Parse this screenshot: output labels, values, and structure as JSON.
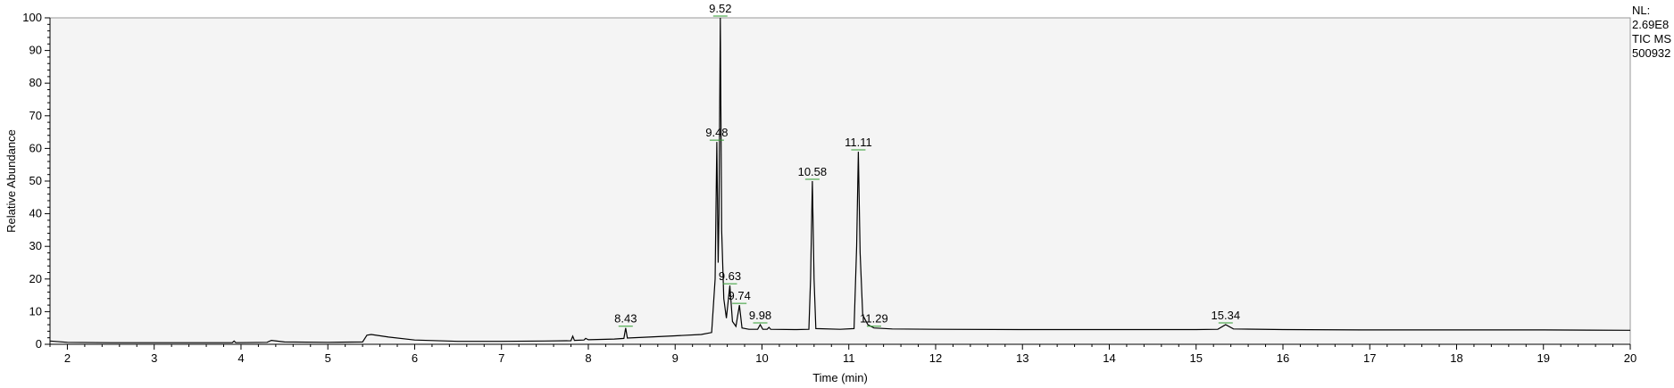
{
  "chart_data": {
    "type": "line",
    "title": "",
    "xlabel": "Time (min)",
    "ylabel": "Relative Abundance",
    "xlim": [
      1.8,
      20
    ],
    "ylim": [
      0,
      100
    ],
    "x_ticks": [
      2,
      3,
      4,
      5,
      6,
      7,
      8,
      9,
      10,
      11,
      12,
      13,
      14,
      15,
      16,
      17,
      18,
      19,
      20
    ],
    "y_ticks": [
      0,
      10,
      20,
      30,
      40,
      50,
      60,
      70,
      80,
      90,
      100
    ],
    "line_color": "#000000",
    "plot_background": "#f4f4f4",
    "label_marker_color": "#2e9b2e",
    "info_lines": [
      "NL:",
      "2.69E8",
      "TIC MS",
      "500932"
    ],
    "peaks": [
      {
        "rt": 8.43,
        "label": "8.43",
        "height": 5
      },
      {
        "rt": 9.48,
        "label": "9.48",
        "height": 62
      },
      {
        "rt": 9.52,
        "label": "9.52",
        "height": 100
      },
      {
        "rt": 9.63,
        "label": "9.63",
        "height": 18
      },
      {
        "rt": 9.74,
        "label": "9.74",
        "height": 12
      },
      {
        "rt": 9.98,
        "label": "9.98",
        "height": 6
      },
      {
        "rt": 10.58,
        "label": "10.58",
        "height": 50
      },
      {
        "rt": 11.11,
        "label": "11.11",
        "height": 59
      },
      {
        "rt": 11.29,
        "label": "11.29",
        "height": 5
      },
      {
        "rt": 15.34,
        "label": "15.34",
        "height": 6
      }
    ],
    "trace": [
      [
        1.8,
        1.0
      ],
      [
        2.0,
        0.6
      ],
      [
        2.5,
        0.5
      ],
      [
        3.0,
        0.5
      ],
      [
        3.5,
        0.5
      ],
      [
        3.9,
        0.5
      ],
      [
        3.92,
        1.0
      ],
      [
        3.94,
        0.5
      ],
      [
        4.3,
        0.6
      ],
      [
        4.35,
        1.2
      ],
      [
        4.5,
        0.7
      ],
      [
        5.0,
        0.6
      ],
      [
        5.4,
        0.7
      ],
      [
        5.45,
        2.8
      ],
      [
        5.5,
        3.0
      ],
      [
        5.7,
        2.2
      ],
      [
        6.0,
        1.3
      ],
      [
        6.5,
        0.9
      ],
      [
        7.0,
        0.9
      ],
      [
        7.5,
        1.0
      ],
      [
        7.8,
        1.1
      ],
      [
        7.82,
        2.5
      ],
      [
        7.84,
        1.2
      ],
      [
        7.95,
        1.3
      ],
      [
        7.97,
        1.8
      ],
      [
        8.0,
        1.4
      ],
      [
        8.3,
        1.6
      ],
      [
        8.41,
        1.8
      ],
      [
        8.43,
        5.0
      ],
      [
        8.45,
        1.9
      ],
      [
        8.7,
        2.2
      ],
      [
        9.0,
        2.6
      ],
      [
        9.3,
        3.0
      ],
      [
        9.42,
        3.6
      ],
      [
        9.46,
        20
      ],
      [
        9.48,
        62
      ],
      [
        9.495,
        25
      ],
      [
        9.505,
        40
      ],
      [
        9.52,
        100
      ],
      [
        9.535,
        35
      ],
      [
        9.56,
        14
      ],
      [
        9.59,
        8
      ],
      [
        9.63,
        18
      ],
      [
        9.66,
        7
      ],
      [
        9.7,
        5.5
      ],
      [
        9.74,
        12
      ],
      [
        9.77,
        5.0
      ],
      [
        9.85,
        4.6
      ],
      [
        9.95,
        4.6
      ],
      [
        9.98,
        6.0
      ],
      [
        10.01,
        4.6
      ],
      [
        10.06,
        4.6
      ],
      [
        10.08,
        5.2
      ],
      [
        10.1,
        4.6
      ],
      [
        10.4,
        4.5
      ],
      [
        10.54,
        4.6
      ],
      [
        10.56,
        20
      ],
      [
        10.58,
        50
      ],
      [
        10.6,
        20
      ],
      [
        10.62,
        4.8
      ],
      [
        10.9,
        4.6
      ],
      [
        11.06,
        4.8
      ],
      [
        11.09,
        30
      ],
      [
        11.11,
        59
      ],
      [
        11.13,
        28
      ],
      [
        11.16,
        9
      ],
      [
        11.22,
        6
      ],
      [
        11.29,
        5.0
      ],
      [
        11.5,
        4.7
      ],
      [
        12.0,
        4.6
      ],
      [
        13.0,
        4.5
      ],
      [
        14.0,
        4.5
      ],
      [
        15.0,
        4.5
      ],
      [
        15.25,
        4.6
      ],
      [
        15.34,
        6.0
      ],
      [
        15.43,
        4.7
      ],
      [
        16.0,
        4.5
      ],
      [
        17.0,
        4.4
      ],
      [
        18.0,
        4.4
      ],
      [
        19.0,
        4.4
      ],
      [
        20.0,
        4.3
      ]
    ]
  }
}
